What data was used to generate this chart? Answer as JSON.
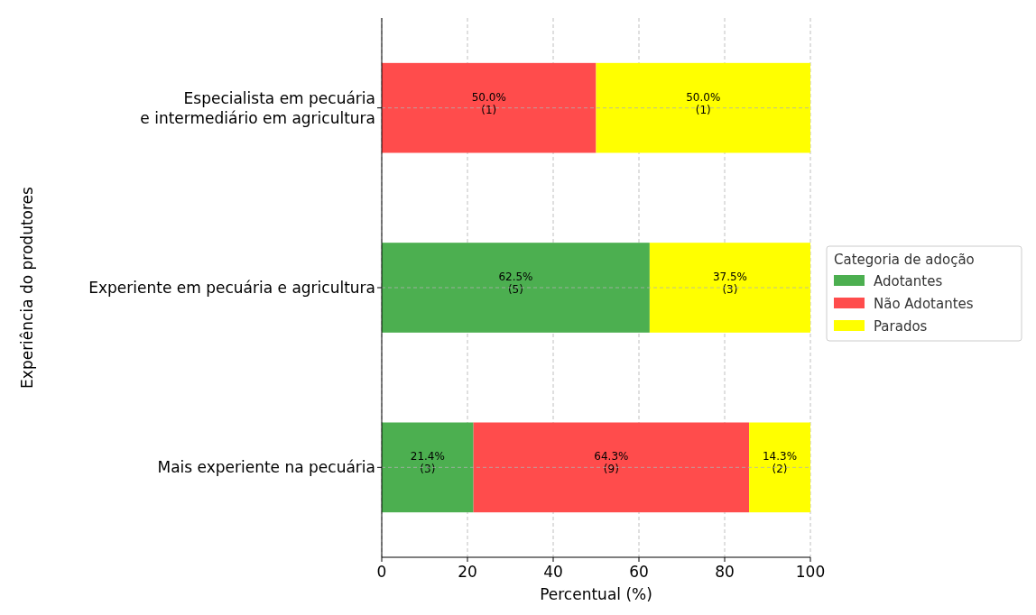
{
  "chart_data": {
    "type": "bar",
    "orientation": "horizontal",
    "stacked": true,
    "xlabel": "Percentual (%)",
    "ylabel": "Experiência do produtores",
    "legend_title": "Categoria de adoção",
    "legend": "right",
    "grid": true,
    "categories": [
      "Especialista em pecuária\ne intermediário em agricultura",
      "Experiente em pecuária e agricultura",
      "Mais experiente na pecuária"
    ],
    "xlim": [
      0,
      100
    ],
    "xticks": [
      0,
      20,
      40,
      60,
      80,
      100
    ],
    "series": [
      {
        "name": "Adotantes",
        "color": "#4caf50",
        "values": [
          null,
          62.5,
          21.4
        ],
        "value_labels": [
          null,
          "62.5%\n(5)",
          "21.4%\n(3)"
        ]
      },
      {
        "name": "Não Adotantes",
        "color": "#ff4c4c",
        "values": [
          50.0,
          null,
          64.3
        ],
        "value_labels": [
          "50.0%\n(1)",
          null,
          "64.3%\n(9)"
        ]
      },
      {
        "name": "Parados",
        "color": "#ffff00",
        "values": [
          50.0,
          37.5,
          14.3
        ],
        "value_labels": [
          "50.0%\n(1)",
          "37.5%\n(3)",
          "14.3%\n(2)"
        ]
      }
    ]
  }
}
